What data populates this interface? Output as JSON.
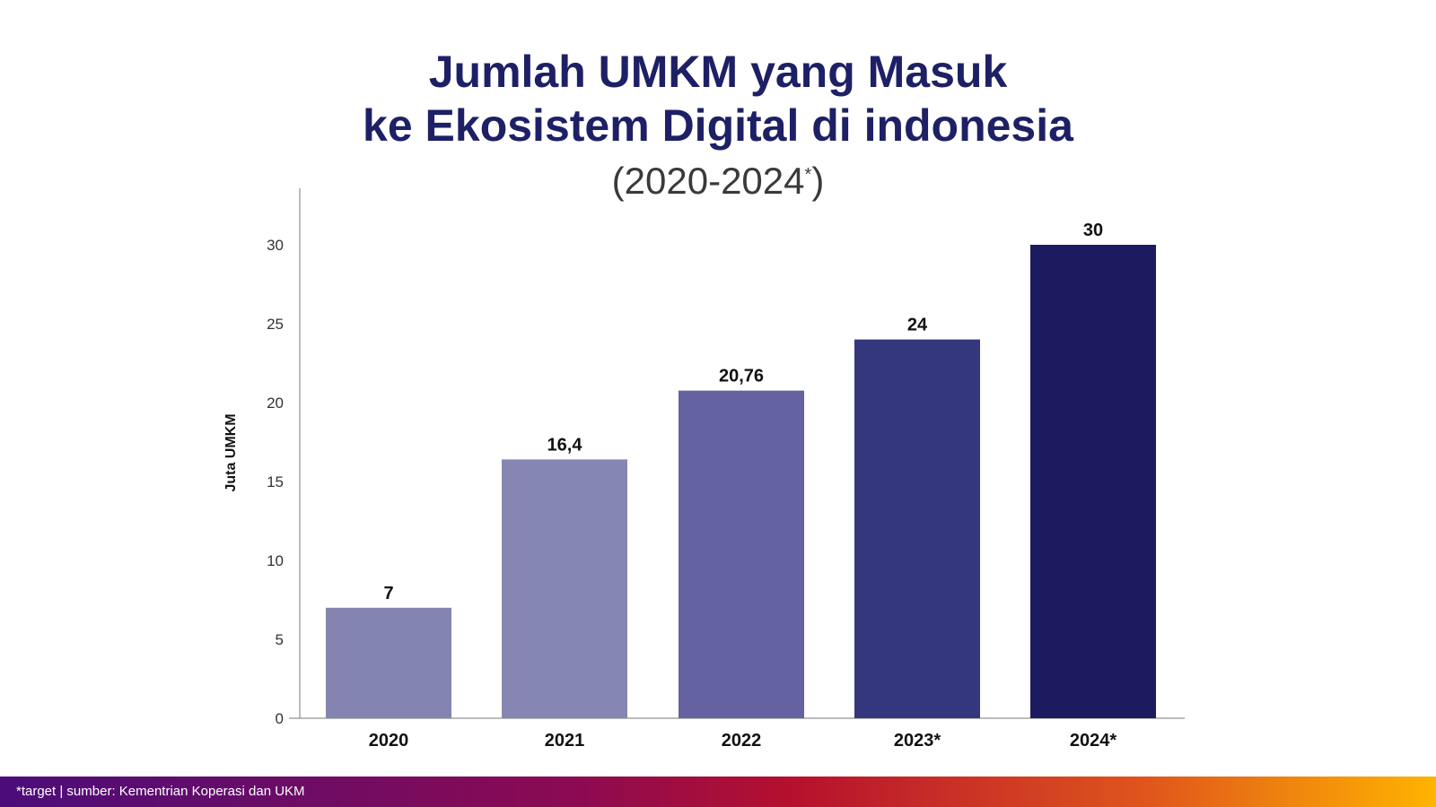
{
  "title_line1": "Jumlah UMKM yang Masuk",
  "title_line2": "ke Ekosistem Digital di indonesia",
  "subtitle_main": "(2020-2024",
  "subtitle_star": "*",
  "subtitle_close": ")",
  "footer_text": "*target  |  sumber: Kementrian Koperasi dan UKM",
  "chart_data": {
    "type": "bar",
    "title": "Jumlah UMKM yang Masuk ke Ekosistem Digital di indonesia",
    "subtitle": "(2020-2024*)",
    "xlabel": "",
    "ylabel": "Juta UMKM",
    "ylim": [
      0,
      33
    ],
    "yticks": [
      0,
      5,
      10,
      15,
      20,
      25,
      30
    ],
    "categories": [
      "2020",
      "2021",
      "2022",
      "2023*",
      "2024*"
    ],
    "values": [
      7,
      16.4,
      20.76,
      24,
      30
    ],
    "value_labels": [
      "7",
      "16,4",
      "20,76",
      "24",
      "30"
    ],
    "bar_colors": [
      "#8385b0",
      "#8587b2",
      "#6462a0",
      "#34377e",
      "#1c1b5f"
    ],
    "grid": false,
    "legend": "none"
  }
}
